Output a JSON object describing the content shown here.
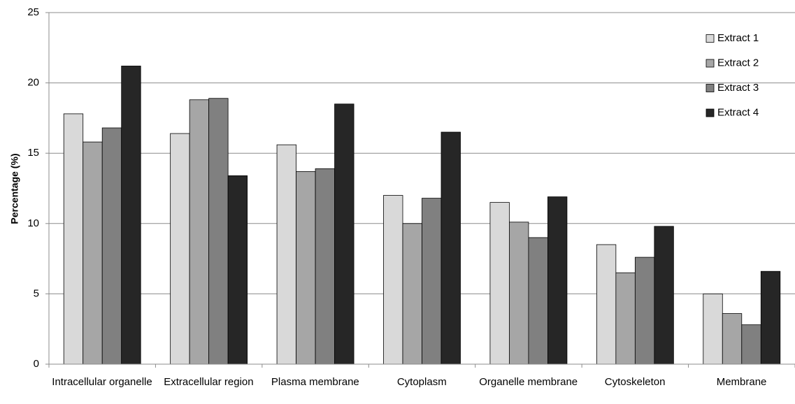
{
  "chart_data": {
    "type": "bar",
    "y_label": "Percentage (%)",
    "categories": [
      "Intracellular organelle",
      "Extracellular region",
      "Plasma membrane",
      "Cytoplasm",
      "Organelle membrane",
      "Cytoskeleton",
      "Membrane"
    ],
    "series": [
      {
        "name": "Extract 1",
        "color": "#d9d9d9",
        "values": [
          17.8,
          16.4,
          15.6,
          12.0,
          11.5,
          8.5,
          5.0
        ]
      },
      {
        "name": "Extract 2",
        "color": "#a6a6a6",
        "values": [
          15.8,
          18.8,
          13.7,
          10.0,
          10.1,
          6.5,
          3.6
        ]
      },
      {
        "name": "Extract 3",
        "color": "#808080",
        "values": [
          16.8,
          18.9,
          13.9,
          11.8,
          9.0,
          7.6,
          2.8
        ]
      },
      {
        "name": "Extract 4",
        "color": "#262626",
        "values": [
          21.2,
          13.4,
          18.5,
          16.5,
          11.9,
          9.8,
          6.6
        ]
      }
    ],
    "ylim": [
      0,
      25
    ],
    "yticks": [
      0,
      5,
      10,
      15,
      20,
      25
    ],
    "grid": true,
    "legend": "upper right"
  }
}
